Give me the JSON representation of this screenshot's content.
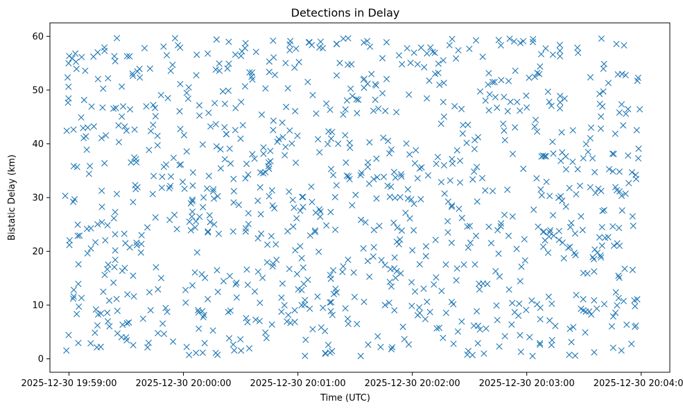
{
  "chart_data": {
    "type": "scatter",
    "title": "Detections in Delay",
    "xlabel": "Time (UTC)",
    "ylabel": "Bistatic Delay (km)",
    "marker": "x",
    "color": "#1f77b4",
    "grid": false,
    "xlim": [
      "2025-12-30 19:58:50",
      "2025-12-30 20:04:15"
    ],
    "ylim": [
      -2.5,
      62.5
    ],
    "x_ticks": [
      "2025-12-30 19:59:00",
      "2025-12-30 20:00:00",
      "2025-12-30 20:01:00",
      "2025-12-30 20:02:00",
      "2025-12-30 20:03:00",
      "2025-12-30 20:04:00"
    ],
    "y_ticks": [
      "0",
      "10",
      "20",
      "30",
      "40",
      "50",
      "60"
    ],
    "x_range": [
      "2025-12-30 19:58:58",
      "2025-12-30 20:04:00"
    ],
    "y_range": [
      0.5,
      59.8
    ],
    "point_count": 1000
  }
}
